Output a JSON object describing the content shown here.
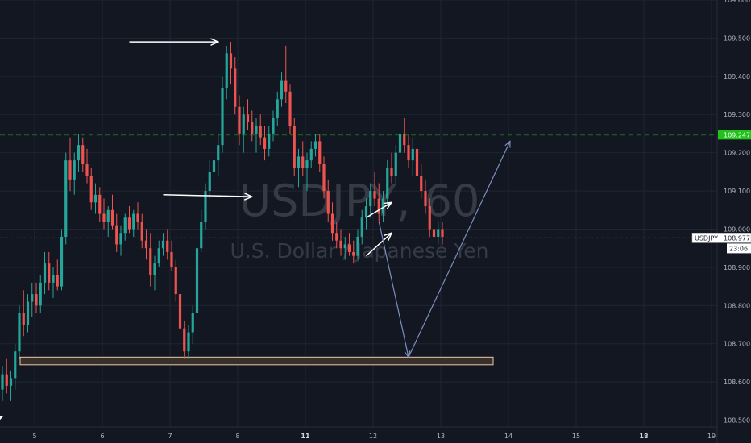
{
  "chart_data": {
    "type": "candlestick",
    "symbol": "USDJPY",
    "interval": "60",
    "description": "U.S. Dollar / Japanese Yen",
    "ylim": [
      108.44,
      109.6
    ],
    "y_ticks": [
      109.6,
      109.5,
      109.4,
      109.3,
      109.2,
      109.1,
      109.0,
      108.9,
      108.8,
      108.7,
      108.6,
      108.5
    ],
    "y_tick_labels": [
      "109.600",
      "109.500",
      "109.400",
      "109.300",
      "109.200",
      "109.100",
      "109.000",
      "108.900",
      "108.800",
      "108.700",
      "108.600",
      "108.500"
    ],
    "x_ticks": [
      {
        "label": "5",
        "bold": false
      },
      {
        "label": "6",
        "bold": false
      },
      {
        "label": "7",
        "bold": false
      },
      {
        "label": "8",
        "bold": false
      },
      {
        "label": "11",
        "bold": true
      },
      {
        "label": "12",
        "bold": false
      },
      {
        "label": "13",
        "bold": false
      },
      {
        "label": "14",
        "bold": false
      },
      {
        "label": "15",
        "bold": false
      },
      {
        "label": "18",
        "bold": true
      },
      {
        "label": "19",
        "bold": false
      }
    ],
    "grid": true,
    "horizontal_level": {
      "value": 109.247,
      "label": "109.247",
      "color": "#21c21a",
      "style": "dashed"
    },
    "current_price": {
      "symbol": "USDJPY",
      "value": 108.977,
      "label": "108.977",
      "countdown": "23:06"
    },
    "support_zone": {
      "low": 108.645,
      "high": 108.665,
      "fill": "#3a302a",
      "stroke": "#e8c8a8"
    },
    "colors": {
      "background": "#131722",
      "up": "#26a69a",
      "down": "#ef5350",
      "grid": "#1f2533",
      "projection": "#7b8fbf",
      "annotation": "#ffffff"
    },
    "candles": [
      [
        108.58,
        108.64,
        108.55,
        108.62
      ],
      [
        108.62,
        108.66,
        108.57,
        108.59
      ],
      [
        108.59,
        108.63,
        108.55,
        108.61
      ],
      [
        108.61,
        108.7,
        108.58,
        108.68
      ],
      [
        108.68,
        108.8,
        108.66,
        108.78
      ],
      [
        108.78,
        108.84,
        108.72,
        108.75
      ],
      [
        108.75,
        108.83,
        108.73,
        108.81
      ],
      [
        108.81,
        108.86,
        108.77,
        108.83
      ],
      [
        108.83,
        108.86,
        108.78,
        108.8
      ],
      [
        108.8,
        108.88,
        108.78,
        108.86
      ],
      [
        108.86,
        108.94,
        108.83,
        108.91
      ],
      [
        108.91,
        108.94,
        108.84,
        108.86
      ],
      [
        108.86,
        108.9,
        108.82,
        108.88
      ],
      [
        108.88,
        108.92,
        108.84,
        108.85
      ],
      [
        108.85,
        109.0,
        108.84,
        108.98
      ],
      [
        108.98,
        109.2,
        108.96,
        109.18
      ],
      [
        109.18,
        109.24,
        109.1,
        109.13
      ],
      [
        109.13,
        109.2,
        109.09,
        109.18
      ],
      [
        109.18,
        109.25,
        109.15,
        109.22
      ],
      [
        109.22,
        109.24,
        109.15,
        109.17
      ],
      [
        109.17,
        109.21,
        109.12,
        109.14
      ],
      [
        109.14,
        109.16,
        109.05,
        109.07
      ],
      [
        109.07,
        109.12,
        109.04,
        109.09
      ],
      [
        109.09,
        109.11,
        109.02,
        109.04
      ],
      [
        109.04,
        109.08,
        109.0,
        109.02
      ],
      [
        109.02,
        109.06,
        108.98,
        109.05
      ],
      [
        109.05,
        109.09,
        109.0,
        109.01
      ],
      [
        109.01,
        109.04,
        108.94,
        108.96
      ],
      [
        108.96,
        109.01,
        108.93,
        108.99
      ],
      [
        108.99,
        109.04,
        108.97,
        109.03
      ],
      [
        109.03,
        109.06,
        108.99,
        109.0
      ],
      [
        109.0,
        109.05,
        108.98,
        109.04
      ],
      [
        109.04,
        109.07,
        109.0,
        109.02
      ],
      [
        109.02,
        109.04,
        108.95,
        108.97
      ],
      [
        108.97,
        109.0,
        108.92,
        108.95
      ],
      [
        108.95,
        108.99,
        108.85,
        108.88
      ],
      [
        108.88,
        108.93,
        108.84,
        108.91
      ],
      [
        108.91,
        108.97,
        108.9,
        108.95
      ],
      [
        108.95,
        108.99,
        108.93,
        108.97
      ],
      [
        108.97,
        109.0,
        108.92,
        108.94
      ],
      [
        108.94,
        108.97,
        108.89,
        108.9
      ],
      [
        108.9,
        108.92,
        108.81,
        108.83
      ],
      [
        108.83,
        108.86,
        108.72,
        108.74
      ],
      [
        108.74,
        108.76,
        108.66,
        108.68
      ],
      [
        108.68,
        108.75,
        108.66,
        108.73
      ],
      [
        108.73,
        108.8,
        108.7,
        108.78
      ],
      [
        108.78,
        108.97,
        108.77,
        108.95
      ],
      [
        108.95,
        109.05,
        108.94,
        109.02
      ],
      [
        109.02,
        109.12,
        109.0,
        109.1
      ],
      [
        109.1,
        109.18,
        109.08,
        109.15
      ],
      [
        109.15,
        109.2,
        109.12,
        109.18
      ],
      [
        109.18,
        109.25,
        109.14,
        109.22
      ],
      [
        109.22,
        109.4,
        109.2,
        109.37
      ],
      [
        109.37,
        109.48,
        109.34,
        109.46
      ],
      [
        109.46,
        109.49,
        109.38,
        109.42
      ],
      [
        109.42,
        109.45,
        109.3,
        109.32
      ],
      [
        109.32,
        109.35,
        109.22,
        109.25
      ],
      [
        109.25,
        109.32,
        109.2,
        109.3
      ],
      [
        109.3,
        109.34,
        109.26,
        109.28
      ],
      [
        109.28,
        109.31,
        109.23,
        109.25
      ],
      [
        109.25,
        109.29,
        109.2,
        109.27
      ],
      [
        109.27,
        109.3,
        109.22,
        109.24
      ],
      [
        109.24,
        109.27,
        109.18,
        109.21
      ],
      [
        109.21,
        109.27,
        109.19,
        109.25
      ],
      [
        109.25,
        109.31,
        109.23,
        109.29
      ],
      [
        109.29,
        109.36,
        109.27,
        109.34
      ],
      [
        109.34,
        109.41,
        109.32,
        109.39
      ],
      [
        109.39,
        109.48,
        109.33,
        109.36
      ],
      [
        109.36,
        109.38,
        109.25,
        109.27
      ],
      [
        109.27,
        109.29,
        109.14,
        109.16
      ],
      [
        109.16,
        109.21,
        109.11,
        109.19
      ],
      [
        109.19,
        109.23,
        109.14,
        109.16
      ],
      [
        109.16,
        109.2,
        109.1,
        109.18
      ],
      [
        109.18,
        109.23,
        109.16,
        109.21
      ],
      [
        109.21,
        109.25,
        109.19,
        109.23
      ],
      [
        109.23,
        109.25,
        109.15,
        109.17
      ],
      [
        109.17,
        109.19,
        109.08,
        109.1
      ],
      [
        109.1,
        109.13,
        109.02,
        109.04
      ],
      [
        109.04,
        109.07,
        108.97,
        108.99
      ],
      [
        108.99,
        109.02,
        108.95,
        108.97
      ],
      [
        108.97,
        109.0,
        108.93,
        108.95
      ],
      [
        108.95,
        108.98,
        108.92,
        108.96
      ],
      [
        108.96,
        108.99,
        108.93,
        108.94
      ],
      [
        108.94,
        108.97,
        108.91,
        108.93
      ],
      [
        108.93,
        109.0,
        108.92,
        108.98
      ],
      [
        108.98,
        109.05,
        108.96,
        109.03
      ],
      [
        109.03,
        109.08,
        109.0,
        109.06
      ],
      [
        109.06,
        109.12,
        109.03,
        109.1
      ],
      [
        109.1,
        109.15,
        109.06,
        109.08
      ],
      [
        109.08,
        109.12,
        109.02,
        109.04
      ],
      [
        109.04,
        109.1,
        109.02,
        109.08
      ],
      [
        109.08,
        109.18,
        109.06,
        109.16
      ],
      [
        109.16,
        109.2,
        109.12,
        109.14
      ],
      [
        109.14,
        109.22,
        109.12,
        109.2
      ],
      [
        109.2,
        109.28,
        109.18,
        109.25
      ],
      [
        109.25,
        109.29,
        109.2,
        109.22
      ],
      [
        109.22,
        109.25,
        109.16,
        109.18
      ],
      [
        109.18,
        109.24,
        109.14,
        109.21
      ],
      [
        109.21,
        109.23,
        109.12,
        109.14
      ],
      [
        109.14,
        109.17,
        109.08,
        109.1
      ],
      [
        109.1,
        109.13,
        109.04,
        109.06
      ],
      [
        109.06,
        109.08,
        108.98,
        109.0
      ],
      [
        109.0,
        109.03,
        108.96,
        108.98
      ],
      [
        108.98,
        109.02,
        108.96,
        109.0
      ],
      [
        109.0,
        109.02,
        108.96,
        108.98
      ]
    ],
    "annotations": {
      "white_arrows": [
        {
          "from": {
            "candle": 30,
            "price": 109.49
          },
          "to": {
            "candle": 51,
            "price": 109.49
          }
        },
        {
          "from": {
            "candle": 38,
            "price": 109.09
          },
          "to": {
            "candle": 59,
            "price": 109.085
          }
        },
        {
          "from": {
            "candle": 86,
            "price": 109.03
          },
          "to": {
            "candle": 92,
            "price": 109.07
          }
        },
        {
          "from": {
            "candle": 86,
            "price": 108.93
          },
          "to": {
            "candle": 92,
            "price": 108.99
          }
        },
        {
          "from": {
            "candle": -2,
            "price": 108.5
          },
          "to": {
            "candle": 0,
            "price": 108.51
          }
        }
      ],
      "projection_path": [
        {
          "candle": 89,
          "price": 109.02
        },
        {
          "candle": 96,
          "price": 108.665
        },
        {
          "candle": 120,
          "price": 109.23
        }
      ]
    }
  }
}
